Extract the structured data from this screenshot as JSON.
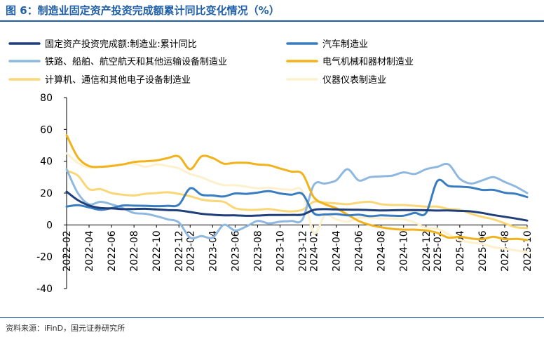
{
  "header": {
    "title": "图 6：制造业固定资产投资完成额累计同比变化情况（%）"
  },
  "footer": {
    "source": "资料来源：iFinD，国元证券研究所"
  },
  "chart_data": {
    "type": "line",
    "x": [
      "2022-02",
      "2022-03",
      "2022-04",
      "2022-05",
      "2022-06",
      "2022-07",
      "2022-08",
      "2022-09",
      "2022-10",
      "2022-11",
      "2022-12",
      "2023-02",
      "2023-03",
      "2023-04",
      "2023-05",
      "2023-06",
      "2023-07",
      "2023-08",
      "2023-09",
      "2023-10",
      "2023-11",
      "2023-12",
      "2024-02",
      "2024-03",
      "2024-04",
      "2024-05",
      "2024-06",
      "2024-07",
      "2024-08",
      "2024-09",
      "2024-10",
      "2024-11",
      "2024-12",
      "2025-02",
      "2025-03",
      "2025-04",
      "2025-05",
      "2025-06",
      "2025-07",
      "2025-08",
      "2025-09",
      "2025-10"
    ],
    "x_tick_labels": [
      "2022-02",
      "2022-04",
      "2022-06",
      "2022-08",
      "2022-10",
      "2022-12",
      "2023-02",
      "2023-04",
      "2023-06",
      "2023-08",
      "2023-10",
      "2023-12",
      "2024-02",
      "2024-04",
      "2024-06",
      "2024-08",
      "2024-10",
      "2024-12",
      "2025-02",
      "2025-04",
      "2025-06",
      "2025-08",
      "2025-10"
    ],
    "ylim": [
      -40,
      80
    ],
    "y_ticks": [
      -40,
      -20,
      0,
      20,
      40,
      60,
      80
    ],
    "legend_position": "top",
    "series": [
      {
        "name": "固定资产投资完成额:制造业:累计同比",
        "color": "#1f3f7a",
        "values": [
          20.9,
          15.6,
          12.2,
          10.6,
          10.4,
          9.9,
          10.0,
          10.1,
          9.7,
          9.3,
          9.1,
          8.1,
          7.0,
          6.4,
          6.0,
          6.0,
          5.7,
          5.9,
          6.2,
          6.2,
          6.3,
          6.5,
          9.4,
          9.9,
          9.7,
          9.6,
          9.5,
          9.3,
          9.1,
          9.2,
          9.3,
          9.3,
          9.2,
          9.0,
          9.1,
          8.8,
          8.5,
          7.5,
          6.2,
          5.1,
          4.0,
          2.7
        ]
      },
      {
        "name": "汽车制造业",
        "color": "#3a7cc0",
        "values": [
          11.5,
          12.4,
          11.0,
          9.5,
          10.5,
          12.2,
          12.1,
          12.0,
          11.8,
          12.0,
          12.8,
          23.0,
          19.0,
          18.5,
          17.9,
          19.8,
          19.5,
          20.3,
          21.2,
          19.8,
          19.0,
          19.4,
          7.4,
          6.6,
          6.8,
          6.0,
          6.4,
          5.5,
          6.0,
          5.8,
          5.8,
          7.5,
          7.5,
          27.5,
          24.5,
          24.0,
          23.5,
          22.0,
          22.0,
          20.2,
          19.5,
          17.5
        ]
      },
      {
        "name": "铁路、船舶、航空航天和其他运输设备制造业",
        "color": "#8eb8e0",
        "values": [
          35.0,
          20.0,
          13.0,
          14.5,
          13.0,
          10.5,
          7.5,
          7.0,
          5.5,
          3.5,
          1.5,
          -8.0,
          -7.0,
          -8.0,
          0.0,
          -3.5,
          -1.0,
          2.5,
          1.0,
          2.0,
          2.5,
          3.5,
          25.0,
          26.0,
          28.0,
          35.0,
          28.0,
          30.0,
          30.5,
          31.0,
          33.0,
          32.0,
          35.0,
          36.5,
          38.0,
          29.0,
          26.0,
          28.0,
          30.0,
          27.0,
          24.0,
          20.0
        ]
      },
      {
        "name": "电气机械和器材制造业",
        "color": "#f2b21b",
        "values": [
          56.4,
          42.5,
          37.0,
          36.5,
          37.0,
          38.0,
          39.5,
          40.0,
          40.5,
          42.0,
          43.0,
          35.0,
          43.0,
          42.0,
          38.5,
          39.0,
          39.0,
          38.0,
          37.5,
          35.5,
          33.5,
          32.0,
          17.5,
          13.0,
          10.5,
          6.5,
          2.5,
          0.0,
          -1.5,
          -2.5,
          -3.0,
          -3.0,
          -3.5,
          -5.0,
          -8.0,
          -7.5,
          -8.5,
          -9.0,
          -7.5,
          -9.0,
          -8.8,
          -9.5
        ]
      },
      {
        "name": "计算机、通信和其他电子设备制造业",
        "color": "#fad776",
        "values": [
          34.0,
          31.0,
          22.5,
          22.5,
          20.0,
          19.0,
          18.5,
          19.5,
          20.0,
          20.5,
          19.5,
          18.0,
          16.0,
          15.0,
          14.5,
          10.5,
          9.5,
          9.5,
          10.0,
          9.0,
          8.5,
          9.5,
          14.5,
          14.0,
          13.5,
          13.0,
          14.0,
          14.5,
          13.0,
          12.5,
          12.5,
          12.0,
          11.5,
          11.5,
          10.0,
          9.5,
          7.0,
          5.0,
          3.5,
          1.0,
          -1.5,
          -2.0
        ]
      },
      {
        "name": "仪器仪表制造业",
        "color": "#fdf0cc",
        "values": [
          45.0,
          39.0,
          36.0,
          36.5,
          37.5,
          38.0,
          38.5,
          36.5,
          38.0,
          37.0,
          35.5,
          32.0,
          30.0,
          27.0,
          25.0,
          25.0,
          24.0,
          23.0,
          23.5,
          22.5,
          22.0,
          21.0,
          -5.0,
          6.0,
          3.5,
          2.0,
          4.5,
          4.5,
          4.0,
          4.0,
          3.5,
          1.5,
          -2.0,
          -2.5,
          -6.0,
          -9.5,
          -11.0,
          -12.0,
          -14.0,
          -15.0,
          -16.0,
          -17.0
        ]
      }
    ]
  }
}
